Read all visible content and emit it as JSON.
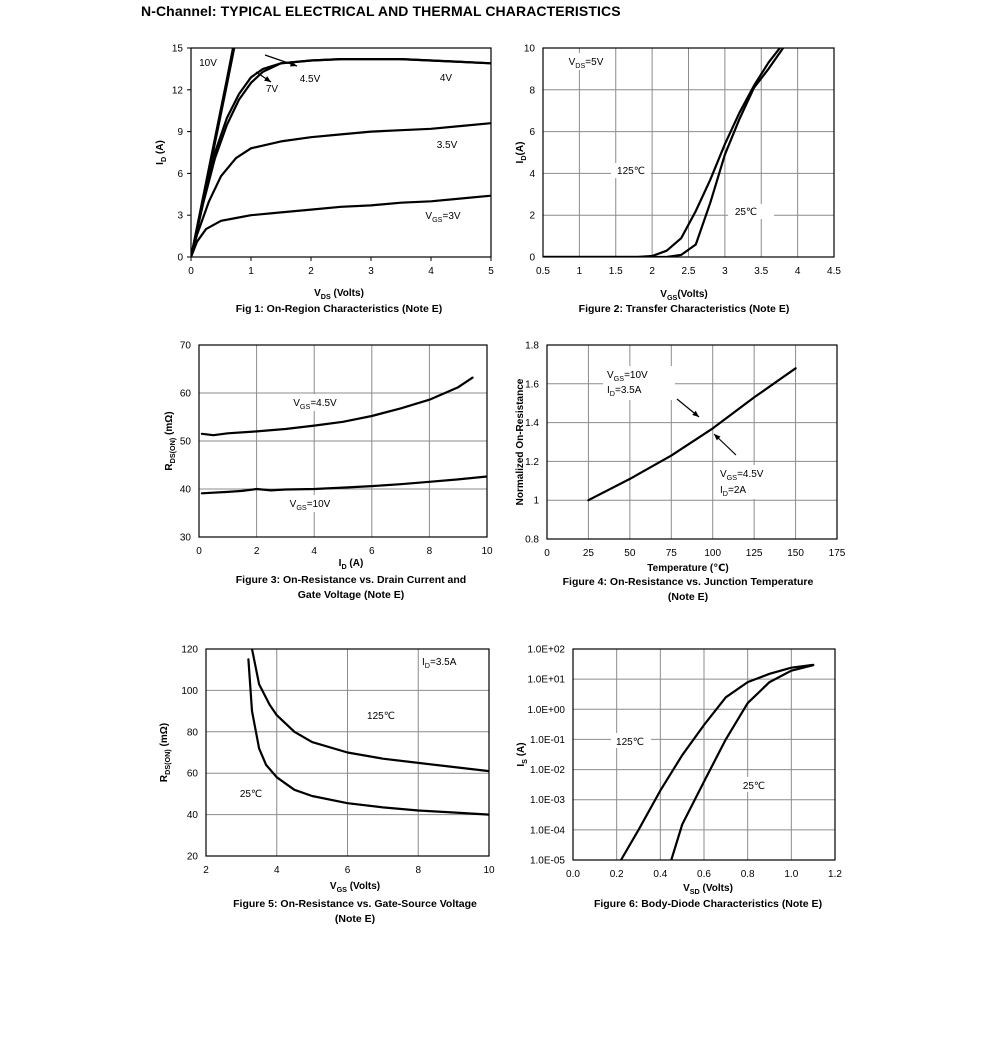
{
  "page": {
    "title": "N-Channel: TYPICAL ELECTRICAL AND THERMAL CHARACTERISTICS"
  },
  "chart_data": [
    {
      "id": "fig1",
      "type": "line",
      "caption": "Fig 1: On-Region Characteristics (Note E)",
      "xlabel": {
        "main": "V",
        "sub": "DS",
        "rest": " (Volts)"
      },
      "ylabel": {
        "main": "I",
        "sub": "D",
        "rest": " (A)"
      },
      "xlim": [
        0,
        5
      ],
      "ylim": [
        0,
        15
      ],
      "xticks": [
        0,
        1,
        2,
        3,
        4,
        5
      ],
      "yticks": [
        0,
        3,
        6,
        9,
        12,
        15
      ],
      "series": [
        {
          "name": "10V",
          "x": [
            0,
            0.3,
            0.6,
            0.7
          ],
          "y": [
            0,
            6.4,
            12.8,
            15
          ]
        },
        {
          "name": "7V",
          "x": [
            0,
            0.3,
            0.6,
            0.72
          ],
          "y": [
            0,
            6.1,
            12.4,
            15
          ]
        },
        {
          "name": "4.5V",
          "x": [
            0,
            0.2,
            0.4,
            0.6,
            0.8,
            1.0,
            1.2,
            1.5,
            2,
            2.5,
            3,
            3.5,
            4,
            4.5,
            5
          ],
          "y": [
            0,
            4.0,
            7.5,
            10.0,
            11.7,
            12.9,
            13.5,
            13.9,
            14.1,
            14.2,
            14.2,
            14.2,
            14.1,
            14.0,
            13.9
          ]
        },
        {
          "name": "4V",
          "x": [
            0,
            0.2,
            0.4,
            0.6,
            0.8,
            1.0,
            1.2,
            1.5,
            2,
            2.5,
            3,
            3.5,
            4,
            4.5,
            5
          ],
          "y": [
            0,
            3.8,
            7.1,
            9.5,
            11.3,
            12.5,
            13.3,
            13.9,
            14.1,
            14.2,
            14.2,
            14.2,
            14.1,
            14.0,
            13.9
          ]
        },
        {
          "name": "3.5V",
          "x": [
            0,
            0.1,
            0.3,
            0.5,
            0.75,
            1.0,
            1.5,
            2,
            2.5,
            3,
            3.5,
            4,
            4.5,
            5
          ],
          "y": [
            0,
            1.6,
            4.0,
            5.8,
            7.1,
            7.8,
            8.3,
            8.6,
            8.8,
            9.0,
            9.1,
            9.2,
            9.4,
            9.6
          ]
        },
        {
          "name": "VGS=3V",
          "x": [
            0,
            0.1,
            0.25,
            0.5,
            0.75,
            1.0,
            1.5,
            2,
            2.5,
            3,
            3.5,
            4,
            4.5,
            5
          ],
          "y": [
            0,
            1.1,
            2.0,
            2.6,
            2.8,
            3.0,
            3.2,
            3.4,
            3.6,
            3.7,
            3.9,
            4.0,
            4.2,
            4.4
          ]
        }
      ],
      "labels": [
        "10V",
        "7V",
        "4.5V",
        "4V",
        "3.5V",
        "3V"
      ],
      "label_prefix": "V",
      "label_sub": "GS",
      "grid": false
    },
    {
      "id": "fig2",
      "type": "line",
      "caption": "Figure 2: Transfer Characteristics (Note E)",
      "xlabel": {
        "main": "V",
        "sub": "GS",
        "rest": "(Volts)"
      },
      "ylabel": {
        "main": "I",
        "sub": "D",
        "rest": "(A)"
      },
      "xlim": [
        0.5,
        4.5
      ],
      "ylim": [
        0,
        10
      ],
      "xticks": [
        0.5,
        1,
        1.5,
        2,
        2.5,
        3,
        3.5,
        4,
        4.5
      ],
      "yticks": [
        0,
        2,
        4,
        6,
        8,
        10
      ],
      "series": [
        {
          "name": "125℃",
          "x": [
            0.5,
            1.8,
            2.0,
            2.2,
            2.4,
            2.6,
            2.8,
            3.0,
            3.2,
            3.4,
            3.6,
            3.8
          ],
          "y": [
            0.0,
            0.0,
            0.05,
            0.3,
            0.9,
            2.2,
            3.7,
            5.4,
            6.9,
            8.2,
            9.3,
            10.2
          ]
        },
        {
          "name": "25℃",
          "x": [
            0.5,
            2.2,
            2.4,
            2.6,
            2.8,
            3.0,
            3.2,
            3.4,
            3.6,
            3.8
          ],
          "y": [
            0.0,
            0.0,
            0.1,
            0.6,
            2.6,
            4.9,
            6.6,
            8.1,
            9.0,
            10.0
          ]
        }
      ],
      "annotations": {
        "vds": {
          "main": "V",
          "sub": "DS",
          "rest": "=5V"
        },
        "t125": "125℃",
        "t25": "25℃"
      },
      "grid": true
    },
    {
      "id": "fig3",
      "type": "line",
      "caption": [
        "Figure 3: On-Resistance vs. Drain Current and",
        "Gate Voltage (Note E)"
      ],
      "xlabel": {
        "main": "I",
        "sub": "D",
        "rest": " (A)"
      },
      "ylabel": {
        "main": "R",
        "sub": "DS(ON)",
        "rest": " (mΩ)"
      },
      "xlim": [
        0,
        10
      ],
      "ylim": [
        30,
        70
      ],
      "xticks": [
        0,
        2,
        4,
        6,
        8,
        10
      ],
      "yticks": [
        30,
        40,
        50,
        60,
        70
      ],
      "series": [
        {
          "name": "VGS=4.5V",
          "x": [
            0.1,
            0.5,
            1,
            2,
            3,
            4,
            5,
            6,
            7,
            8,
            9,
            9.5
          ],
          "y": [
            51.5,
            51.2,
            51.6,
            52.0,
            52.5,
            53.2,
            54.0,
            55.2,
            56.8,
            58.6,
            61.2,
            63.2
          ]
        },
        {
          "name": "VGS=10V",
          "x": [
            0.1,
            1,
            1.5,
            2,
            2.5,
            3,
            4,
            5,
            6,
            7,
            8,
            9,
            10
          ],
          "y": [
            39.1,
            39.4,
            39.6,
            40.0,
            39.7,
            39.9,
            40.0,
            40.3,
            40.6,
            41.0,
            41.5,
            42.0,
            42.6
          ]
        }
      ],
      "annotations": {
        "vgs45": {
          "main": "V",
          "sub": "GS",
          "rest": "=4.5V"
        },
        "vgs10": {
          "main": "V",
          "sub": "GS",
          "rest": "=10V"
        }
      },
      "grid": true
    },
    {
      "id": "fig4",
      "type": "line",
      "caption": [
        "Figure 4: On-Resistance vs. Junction Temperature",
        "(Note E)"
      ],
      "xlabel": {
        "main": "Temperature (℃)",
        "sub": "",
        "rest": ""
      },
      "ylabel": {
        "main": "Normalized On-Resistance",
        "sub": "",
        "rest": ""
      },
      "xlim": [
        0,
        175
      ],
      "ylim": [
        0.8,
        1.8
      ],
      "xticks": [
        0,
        25,
        50,
        75,
        100,
        125,
        150,
        175
      ],
      "yticks": [
        0.8,
        1,
        1.2,
        1.4,
        1.6,
        1.8
      ],
      "series": [
        {
          "name": "VGS=10V / VGS=4.5V",
          "x": [
            25,
            50,
            75,
            100,
            125,
            150
          ],
          "y": [
            1.0,
            1.11,
            1.23,
            1.37,
            1.53,
            1.68
          ]
        }
      ],
      "annotations": {
        "a1l1": {
          "main": "V",
          "sub": "GS",
          "rest": "=10V"
        },
        "a1l2": {
          "main": "I",
          "sub": "D",
          "rest": "=3.5A"
        },
        "a2l1": {
          "main": "V",
          "sub": "GS",
          "rest": "=4.5V"
        },
        "a2l2": {
          "main": "I",
          "sub": "D",
          "rest": "=2A"
        }
      },
      "grid": true
    },
    {
      "id": "fig5",
      "type": "line",
      "caption": [
        "Figure 5: On-Resistance vs. Gate-Source Voltage",
        "(Note E)"
      ],
      "xlabel": {
        "main": "V",
        "sub": "GS",
        "rest": " (Volts)"
      },
      "ylabel": {
        "main": "R",
        "sub": "DS(ON)",
        "rest": " (mΩ)"
      },
      "xlim": [
        2,
        10
      ],
      "ylim": [
        20,
        120
      ],
      "xticks": [
        2,
        4,
        6,
        8,
        10
      ],
      "yticks": [
        20,
        40,
        60,
        80,
        100,
        120
      ],
      "series": [
        {
          "name": "125℃",
          "x": [
            3.3,
            3.5,
            3.8,
            4.0,
            4.5,
            5,
            6,
            7,
            8,
            9,
            10
          ],
          "y": [
            120,
            103,
            93,
            88,
            80,
            75,
            70,
            67,
            65,
            63,
            61
          ]
        },
        {
          "name": "25℃",
          "x": [
            3.2,
            3.3,
            3.5,
            3.7,
            4.0,
            4.5,
            5,
            6,
            7,
            8,
            9,
            10
          ],
          "y": [
            115,
            90,
            72,
            64,
            58,
            52,
            49,
            45.5,
            43.5,
            42,
            41,
            40
          ]
        }
      ],
      "annotations": {
        "id": {
          "main": "I",
          "sub": "D",
          "rest": "=3.5A"
        },
        "t125": "125℃",
        "t25": "25℃"
      },
      "grid": true
    },
    {
      "id": "fig6",
      "type": "line",
      "log_y": true,
      "caption": "Figure 6: Body-Diode Characteristics (Note E)",
      "xlabel": {
        "main": "V",
        "sub": "SD",
        "rest": " (Volts)"
      },
      "ylabel": {
        "main": "I",
        "sub": "S",
        "rest": " (A)"
      },
      "xlim": [
        0.0,
        1.2
      ],
      "ylim": [
        1e-05,
        100
      ],
      "xticks": [
        0.0,
        0.2,
        0.4,
        0.6,
        0.8,
        1.0,
        1.2
      ],
      "xtick_labels": [
        "0.0",
        "0.2",
        "0.4",
        "0.6",
        "0.8",
        "1.0",
        "1.2"
      ],
      "yticks": [
        1e-05,
        0.0001,
        0.001,
        0.01,
        0.1,
        1,
        10,
        100
      ],
      "ytick_labels": [
        "1.0E-05",
        "1.0E-04",
        "1.0E-03",
        "1.0E-02",
        "1.0E-01",
        "1.0E+00",
        "1.0E+01",
        "1.0E+02"
      ],
      "series": [
        {
          "name": "125℃",
          "x": [
            0.22,
            0.3,
            0.4,
            0.5,
            0.6,
            0.7,
            0.8,
            0.9,
            1.0,
            1.1
          ],
          "y": [
            1e-05,
            0.0001,
            0.002,
            0.03,
            0.3,
            2.5,
            8,
            15,
            24,
            30
          ]
        },
        {
          "name": "25℃",
          "x": [
            0.45,
            0.5,
            0.6,
            0.7,
            0.8,
            0.9,
            1.0,
            1.1
          ],
          "y": [
            1e-05,
            0.00015,
            0.004,
            0.1,
            1.6,
            8,
            19,
            29
          ]
        }
      ],
      "annotations": {
        "t125": "125℃",
        "t25": "25℃"
      },
      "grid": true
    }
  ]
}
